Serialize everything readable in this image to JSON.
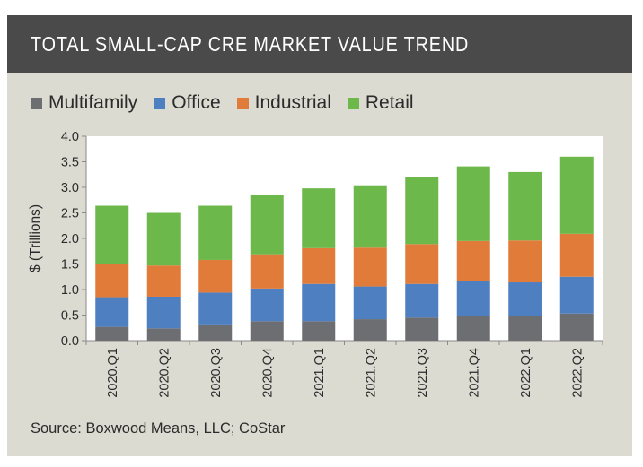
{
  "title": "TOTAL SMALL-CAP CRE MARKET VALUE TREND",
  "source": "Source: Boxwood Means, LLC; CoStar",
  "chart_data": {
    "type": "bar",
    "stacked": true,
    "categories": [
      "2020.Q1",
      "2020.Q2",
      "2020.Q3",
      "2020.Q4",
      "2021.Q1",
      "2021.Q2",
      "2021.Q3",
      "2021.Q4",
      "2022.Q1",
      "2022.Q2"
    ],
    "series": [
      {
        "name": "Multifamily",
        "color": "#6d6e71",
        "values": [
          0.27,
          0.24,
          0.3,
          0.38,
          0.38,
          0.42,
          0.45,
          0.48,
          0.48,
          0.53
        ]
      },
      {
        "name": "Office",
        "color": "#4e7fc1",
        "values": [
          0.58,
          0.62,
          0.64,
          0.64,
          0.73,
          0.64,
          0.66,
          0.69,
          0.66,
          0.72
        ]
      },
      {
        "name": "Industrial",
        "color": "#e07b39",
        "values": [
          0.65,
          0.61,
          0.64,
          0.67,
          0.7,
          0.76,
          0.78,
          0.78,
          0.82,
          0.84
        ]
      },
      {
        "name": "Retail",
        "color": "#6cb84a",
        "values": [
          1.14,
          1.03,
          1.06,
          1.17,
          1.17,
          1.22,
          1.32,
          1.46,
          1.34,
          1.51
        ]
      }
    ],
    "ylabel": "$ (Trillions)",
    "ylim": [
      0,
      4.0
    ],
    "yticks": [
      "0.0",
      "0.5",
      "1.0",
      "1.5",
      "2.0",
      "2.5",
      "3.0",
      "3.5",
      "4.0"
    ],
    "grid": false,
    "legend_position": "top-left"
  }
}
